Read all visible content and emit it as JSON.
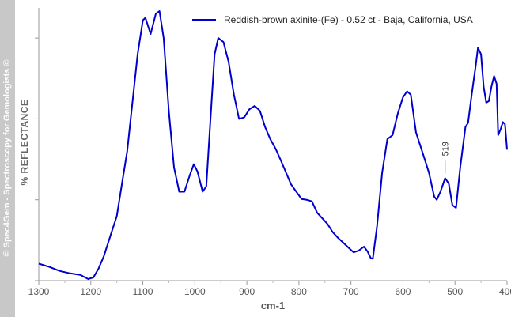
{
  "watermark": "© Spec4Gem - Spectroscopy for Gemologists ©",
  "chart_data": {
    "type": "line",
    "title": "",
    "xlabel": "cm-1",
    "ylabel": "% REFLECTANCE",
    "xlim": [
      1300,
      400
    ],
    "x_reversed": true,
    "ylim": [
      0,
      100
    ],
    "x_ticks": [
      1300,
      1200,
      1100,
      1000,
      900,
      800,
      700,
      600,
      500,
      400
    ],
    "x_tick_labels": [
      "1300",
      "1200",
      "1100",
      "1000",
      "900",
      "800",
      "700",
      "600",
      "500",
      "400"
    ],
    "y_ticks": [
      0,
      30,
      60,
      90
    ],
    "y_tick_labels_visible": false,
    "grid": false,
    "legend_position": "top-right",
    "series": [
      {
        "name": "Reddish-brown axinite-(Fe) - 0.52 ct - Baja, California, USA",
        "color": "#0000cc",
        "points": [
          [
            1300,
            6.3
          ],
          [
            1280,
            5.1
          ],
          [
            1260,
            3.6
          ],
          [
            1240,
            2.7
          ],
          [
            1220,
            2.1
          ],
          [
            1205,
            0.6
          ],
          [
            1195,
            1.2
          ],
          [
            1185,
            4.5
          ],
          [
            1175,
            9.0
          ],
          [
            1160,
            18.0
          ],
          [
            1150,
            24.0
          ],
          [
            1140,
            36.0
          ],
          [
            1130,
            48.0
          ],
          [
            1120,
            66.0
          ],
          [
            1110,
            84.0
          ],
          [
            1100,
            96.6
          ],
          [
            1095,
            97.5
          ],
          [
            1085,
            91.5
          ],
          [
            1075,
            99.0
          ],
          [
            1068,
            100.0
          ],
          [
            1060,
            90.0
          ],
          [
            1050,
            63.0
          ],
          [
            1040,
            42.0
          ],
          [
            1030,
            33.0
          ],
          [
            1020,
            33.0
          ],
          [
            1010,
            39.0
          ],
          [
            1002,
            43.2
          ],
          [
            995,
            40.5
          ],
          [
            985,
            33.0
          ],
          [
            978,
            35.0
          ],
          [
            970,
            60.0
          ],
          [
            962,
            84.0
          ],
          [
            955,
            90.0
          ],
          [
            945,
            88.5
          ],
          [
            935,
            81.0
          ],
          [
            925,
            69.0
          ],
          [
            915,
            60.0
          ],
          [
            905,
            60.6
          ],
          [
            895,
            63.6
          ],
          [
            885,
            64.8
          ],
          [
            875,
            63.0
          ],
          [
            865,
            57.0
          ],
          [
            855,
            52.5
          ],
          [
            845,
            49.0
          ],
          [
            835,
            44.7
          ],
          [
            825,
            40.2
          ],
          [
            815,
            35.7
          ],
          [
            805,
            33.0
          ],
          [
            795,
            30.3
          ],
          [
            785,
            30.0
          ],
          [
            775,
            29.4
          ],
          [
            765,
            25.2
          ],
          [
            755,
            23.1
          ],
          [
            745,
            21.0
          ],
          [
            735,
            18.0
          ],
          [
            725,
            15.9
          ],
          [
            715,
            14.1
          ],
          [
            705,
            12.3
          ],
          [
            695,
            10.5
          ],
          [
            685,
            11.1
          ],
          [
            675,
            12.6
          ],
          [
            668,
            10.8
          ],
          [
            662,
            8.4
          ],
          [
            658,
            8.1
          ],
          [
            650,
            20.0
          ],
          [
            640,
            40.0
          ],
          [
            630,
            52.5
          ],
          [
            620,
            54.0
          ],
          [
            610,
            62.0
          ],
          [
            600,
            68.0
          ],
          [
            592,
            70.2
          ],
          [
            585,
            69.0
          ],
          [
            575,
            55.0
          ],
          [
            560,
            46.0
          ],
          [
            550,
            40.0
          ],
          [
            540,
            31.2
          ],
          [
            535,
            30.0
          ],
          [
            528,
            33.0
          ],
          [
            519,
            38.0
          ],
          [
            512,
            36.0
          ],
          [
            505,
            28.0
          ],
          [
            498,
            27.0
          ],
          [
            490,
            42.0
          ],
          [
            480,
            57.0
          ],
          [
            475,
            58.5
          ],
          [
            468,
            69.0
          ],
          [
            460,
            80.0
          ],
          [
            456,
            86.4
          ],
          [
            450,
            84.0
          ],
          [
            445,
            72.0
          ],
          [
            440,
            66.0
          ],
          [
            435,
            66.6
          ],
          [
            430,
            72.0
          ],
          [
            425,
            75.9
          ],
          [
            420,
            73.0
          ],
          [
            417,
            54.0
          ],
          [
            412,
            56.4
          ],
          [
            408,
            58.8
          ],
          [
            404,
            58.0
          ],
          [
            400,
            48.6
          ]
        ]
      }
    ],
    "annotations": [
      {
        "text": "519",
        "x": 519,
        "y": 38.0
      }
    ]
  }
}
